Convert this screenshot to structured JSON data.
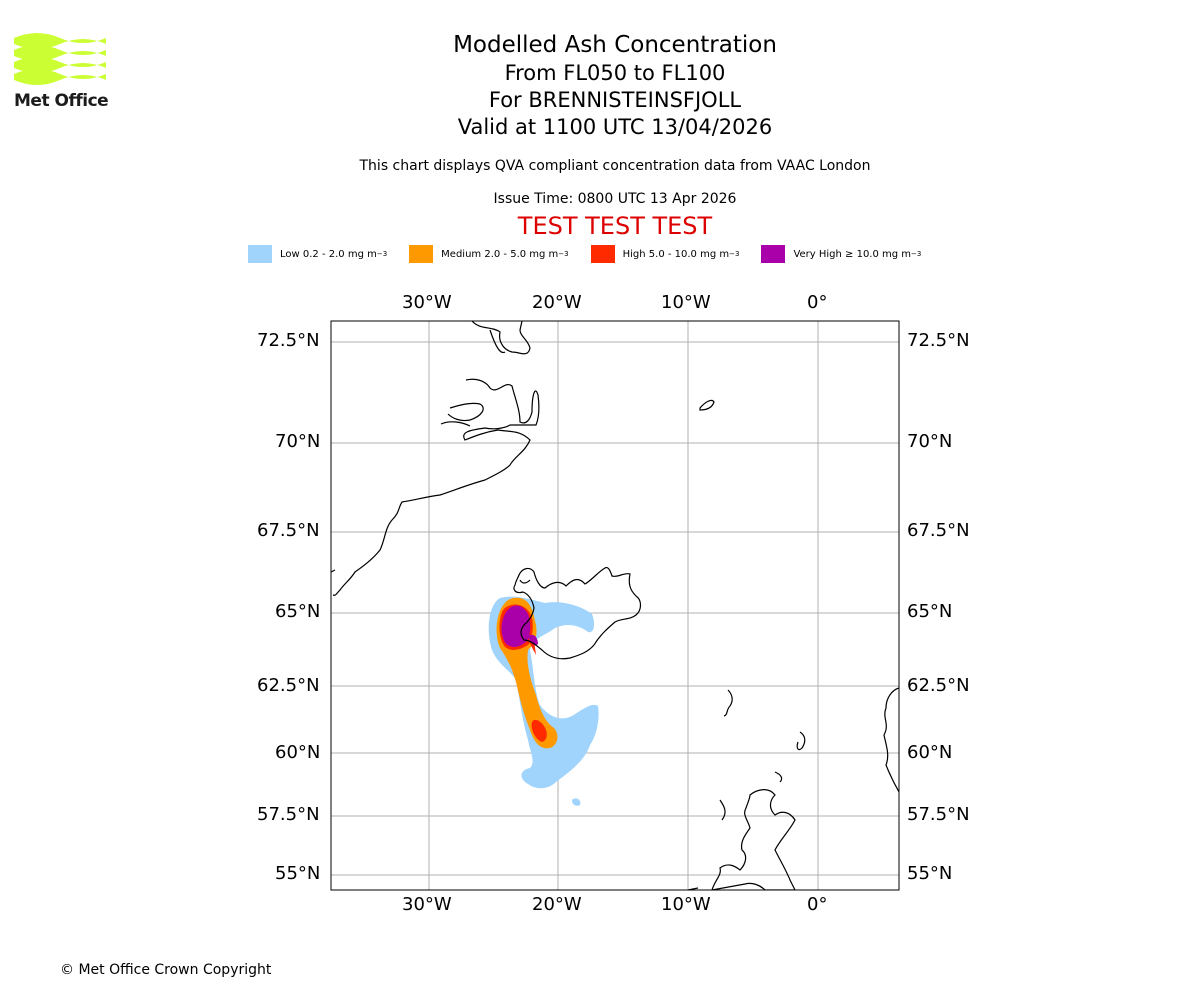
{
  "brand": {
    "name": "Met Office",
    "logo_color": "#ccff33"
  },
  "title": {
    "line1": "Modelled Ash Concentration",
    "line2": "From FL050 to FL100",
    "line3": "For BRENNISTEINSFJOLL",
    "line4": "Valid at 1100 UTC 13/04/2026"
  },
  "note": "This chart displays QVA compliant concentration data from VAAC London",
  "issue_time": "Issue Time: 0800 UTC 13 Apr 2026",
  "test_banner": "TEST TEST TEST",
  "legend": [
    {
      "label": "Low 0.2 - 2.0 mg m",
      "sup": "−3",
      "color": "#a0d4fc"
    },
    {
      "label": "Medium 2.0 - 5.0 mg m",
      "sup": "−3",
      "color": "#ff9900"
    },
    {
      "label": "High 5.0 - 10.0 mg m",
      "sup": "−3",
      "color": "#ff2a00"
    },
    {
      "label": "Very High  ≥  10.0 mg m",
      "sup": "−3",
      "color": "#aa00aa"
    }
  ],
  "axes": {
    "lon_ticks": [
      "30°W",
      "20°W",
      "10°W",
      "0°"
    ],
    "lat_ticks": [
      "72.5°N",
      "70°N",
      "67.5°N",
      "65°N",
      "62.5°N",
      "60°N",
      "57.5°N",
      "55°N"
    ]
  },
  "copyright": "© Met Office Crown Copyright"
}
